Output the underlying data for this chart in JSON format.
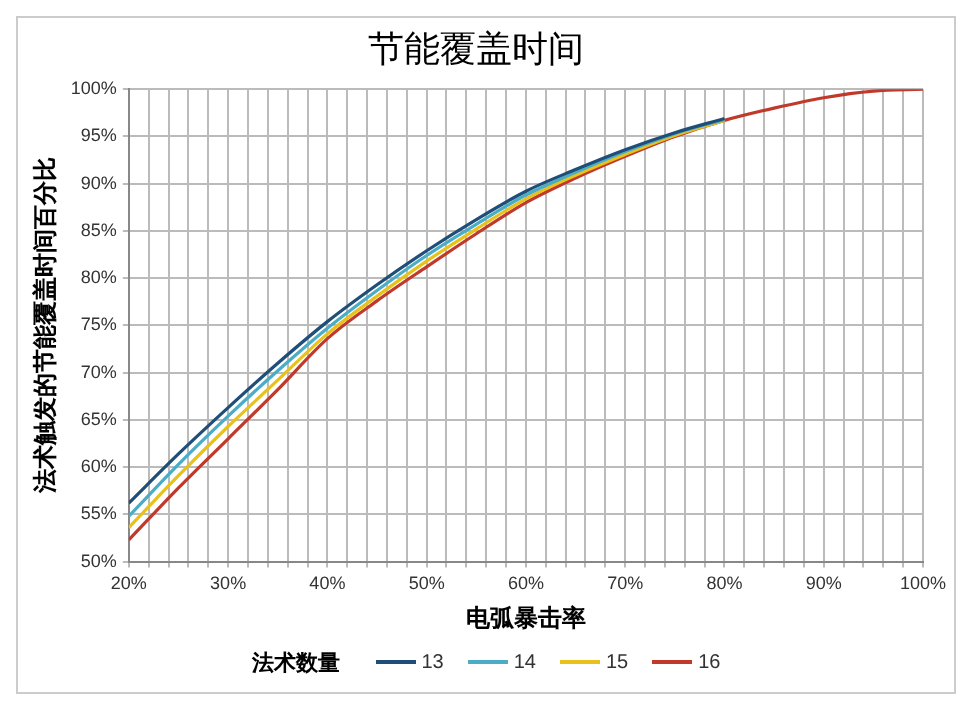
{
  "chart_data": {
    "type": "line",
    "title": "节能覆盖时间",
    "xlabel": "电弧暴击率",
    "ylabel": "法术触发的节能覆盖时间百分比",
    "legend_title": "法术数量",
    "x": [
      20,
      25,
      30,
      35,
      40,
      45,
      50,
      55,
      60,
      65,
      70,
      75,
      80,
      85,
      90,
      95,
      100
    ],
    "series": [
      {
        "name": "13",
        "color": "#1f4e79",
        "values": [
          56.2,
          61.4,
          66.3,
          71,
          75.4,
          79.3,
          82.9,
          86.2,
          89.2,
          91.5,
          93.6,
          95.4,
          96.9,
          null,
          null,
          null,
          null
        ]
      },
      {
        "name": "14",
        "color": "#4bacc6",
        "values": [
          54.8,
          60.3,
          65.4,
          70.2,
          74.7,
          78.7,
          82.4,
          85.7,
          88.8,
          91.2,
          93.4,
          95.3,
          96.8,
          null,
          null,
          null,
          null
        ]
      },
      {
        "name": "15",
        "color": "#e8c21a",
        "values": [
          53.6,
          59.1,
          64.3,
          69.2,
          74.1,
          78.1,
          81.8,
          85.2,
          88.4,
          90.9,
          93.1,
          95.1,
          96.7,
          null,
          null,
          null,
          null
        ]
      },
      {
        "name": "16",
        "color": "#c0392b",
        "values": [
          52.3,
          57.8,
          63,
          68.2,
          73.6,
          77.6,
          81.2,
          84.7,
          88,
          90.6,
          92.9,
          95,
          96.7,
          98,
          99.1,
          99.8,
          100
        ]
      }
    ],
    "xlim": [
      20,
      100
    ],
    "xticks": [
      {
        "value": 20,
        "label": "20%"
      },
      {
        "value": 22,
        "label": null
      },
      {
        "value": 24,
        "label": null
      },
      {
        "value": 26,
        "label": null
      },
      {
        "value": 28,
        "label": null
      },
      {
        "value": 30,
        "label": "30%"
      },
      {
        "value": 32,
        "label": null
      },
      {
        "value": 34,
        "label": null
      },
      {
        "value": 36,
        "label": null
      },
      {
        "value": 38,
        "label": null
      },
      {
        "value": 40,
        "label": "40%"
      },
      {
        "value": 42,
        "label": null
      },
      {
        "value": 44,
        "label": null
      },
      {
        "value": 46,
        "label": null
      },
      {
        "value": 48,
        "label": null
      },
      {
        "value": 50,
        "label": "50%"
      },
      {
        "value": 52,
        "label": null
      },
      {
        "value": 54,
        "label": null
      },
      {
        "value": 56,
        "label": null
      },
      {
        "value": 58,
        "label": null
      },
      {
        "value": 60,
        "label": "60%"
      },
      {
        "value": 62,
        "label": null
      },
      {
        "value": 64,
        "label": null
      },
      {
        "value": 66,
        "label": null
      },
      {
        "value": 68,
        "label": null
      },
      {
        "value": 70,
        "label": "70%"
      },
      {
        "value": 72,
        "label": null
      },
      {
        "value": 74,
        "label": null
      },
      {
        "value": 76,
        "label": null
      },
      {
        "value": 78,
        "label": null
      },
      {
        "value": 80,
        "label": "80%"
      },
      {
        "value": 82,
        "label": null
      },
      {
        "value": 84,
        "label": null
      },
      {
        "value": 86,
        "label": null
      },
      {
        "value": 88,
        "label": null
      },
      {
        "value": 90,
        "label": "90%"
      },
      {
        "value": 92,
        "label": null
      },
      {
        "value": 94,
        "label": null
      },
      {
        "value": 96,
        "label": null
      },
      {
        "value": 98,
        "label": null
      },
      {
        "value": 100,
        "label": "100%"
      }
    ],
    "ylim": [
      50,
      100
    ],
    "yticks": [
      {
        "value": 50,
        "label": "50%"
      },
      {
        "value": 55,
        "label": "55%"
      },
      {
        "value": 60,
        "label": "60%"
      },
      {
        "value": 65,
        "label": "65%"
      },
      {
        "value": 70,
        "label": "70%"
      },
      {
        "value": 75,
        "label": "75%"
      },
      {
        "value": 80,
        "label": "80%"
      },
      {
        "value": 85,
        "label": "85%"
      },
      {
        "value": 90,
        "label": "90%"
      },
      {
        "value": 95,
        "label": "95%"
      },
      {
        "value": 100,
        "label": "100%"
      }
    ],
    "grid": true,
    "legend": "bottom",
    "marker": "none",
    "line_style": "solid"
  }
}
